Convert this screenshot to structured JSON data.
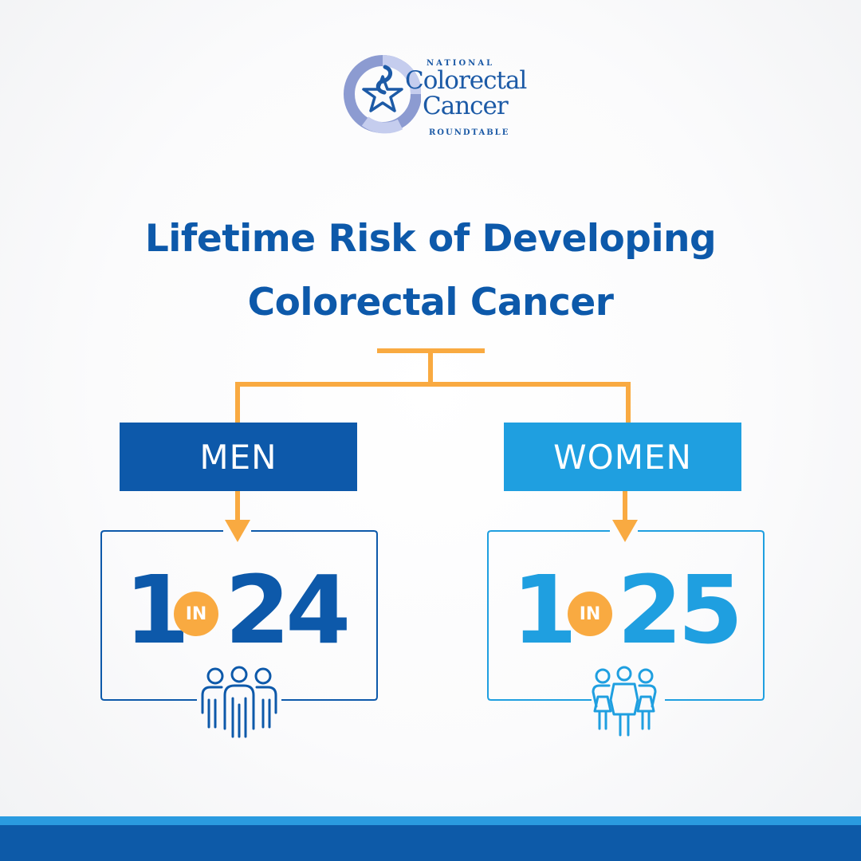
{
  "logo": {
    "line1": "NATIONAL",
    "line2": "Colorectal",
    "line3": "Cancer",
    "line4": "ROUNDTABLE"
  },
  "title": {
    "line1": "Lifetime Risk of Developing",
    "line2": "Colorectal Cancer"
  },
  "men": {
    "label": "MEN",
    "numerator": "1",
    "connector": "IN",
    "denominator": "24",
    "icon": "men-group-icon"
  },
  "women": {
    "label": "WOMEN",
    "numerator": "1",
    "connector": "IN",
    "denominator": "25",
    "icon": "women-group-icon"
  },
  "colors": {
    "dark_blue": "#0d59aa",
    "light_blue": "#1f9fe0",
    "orange": "#f9aa41"
  }
}
